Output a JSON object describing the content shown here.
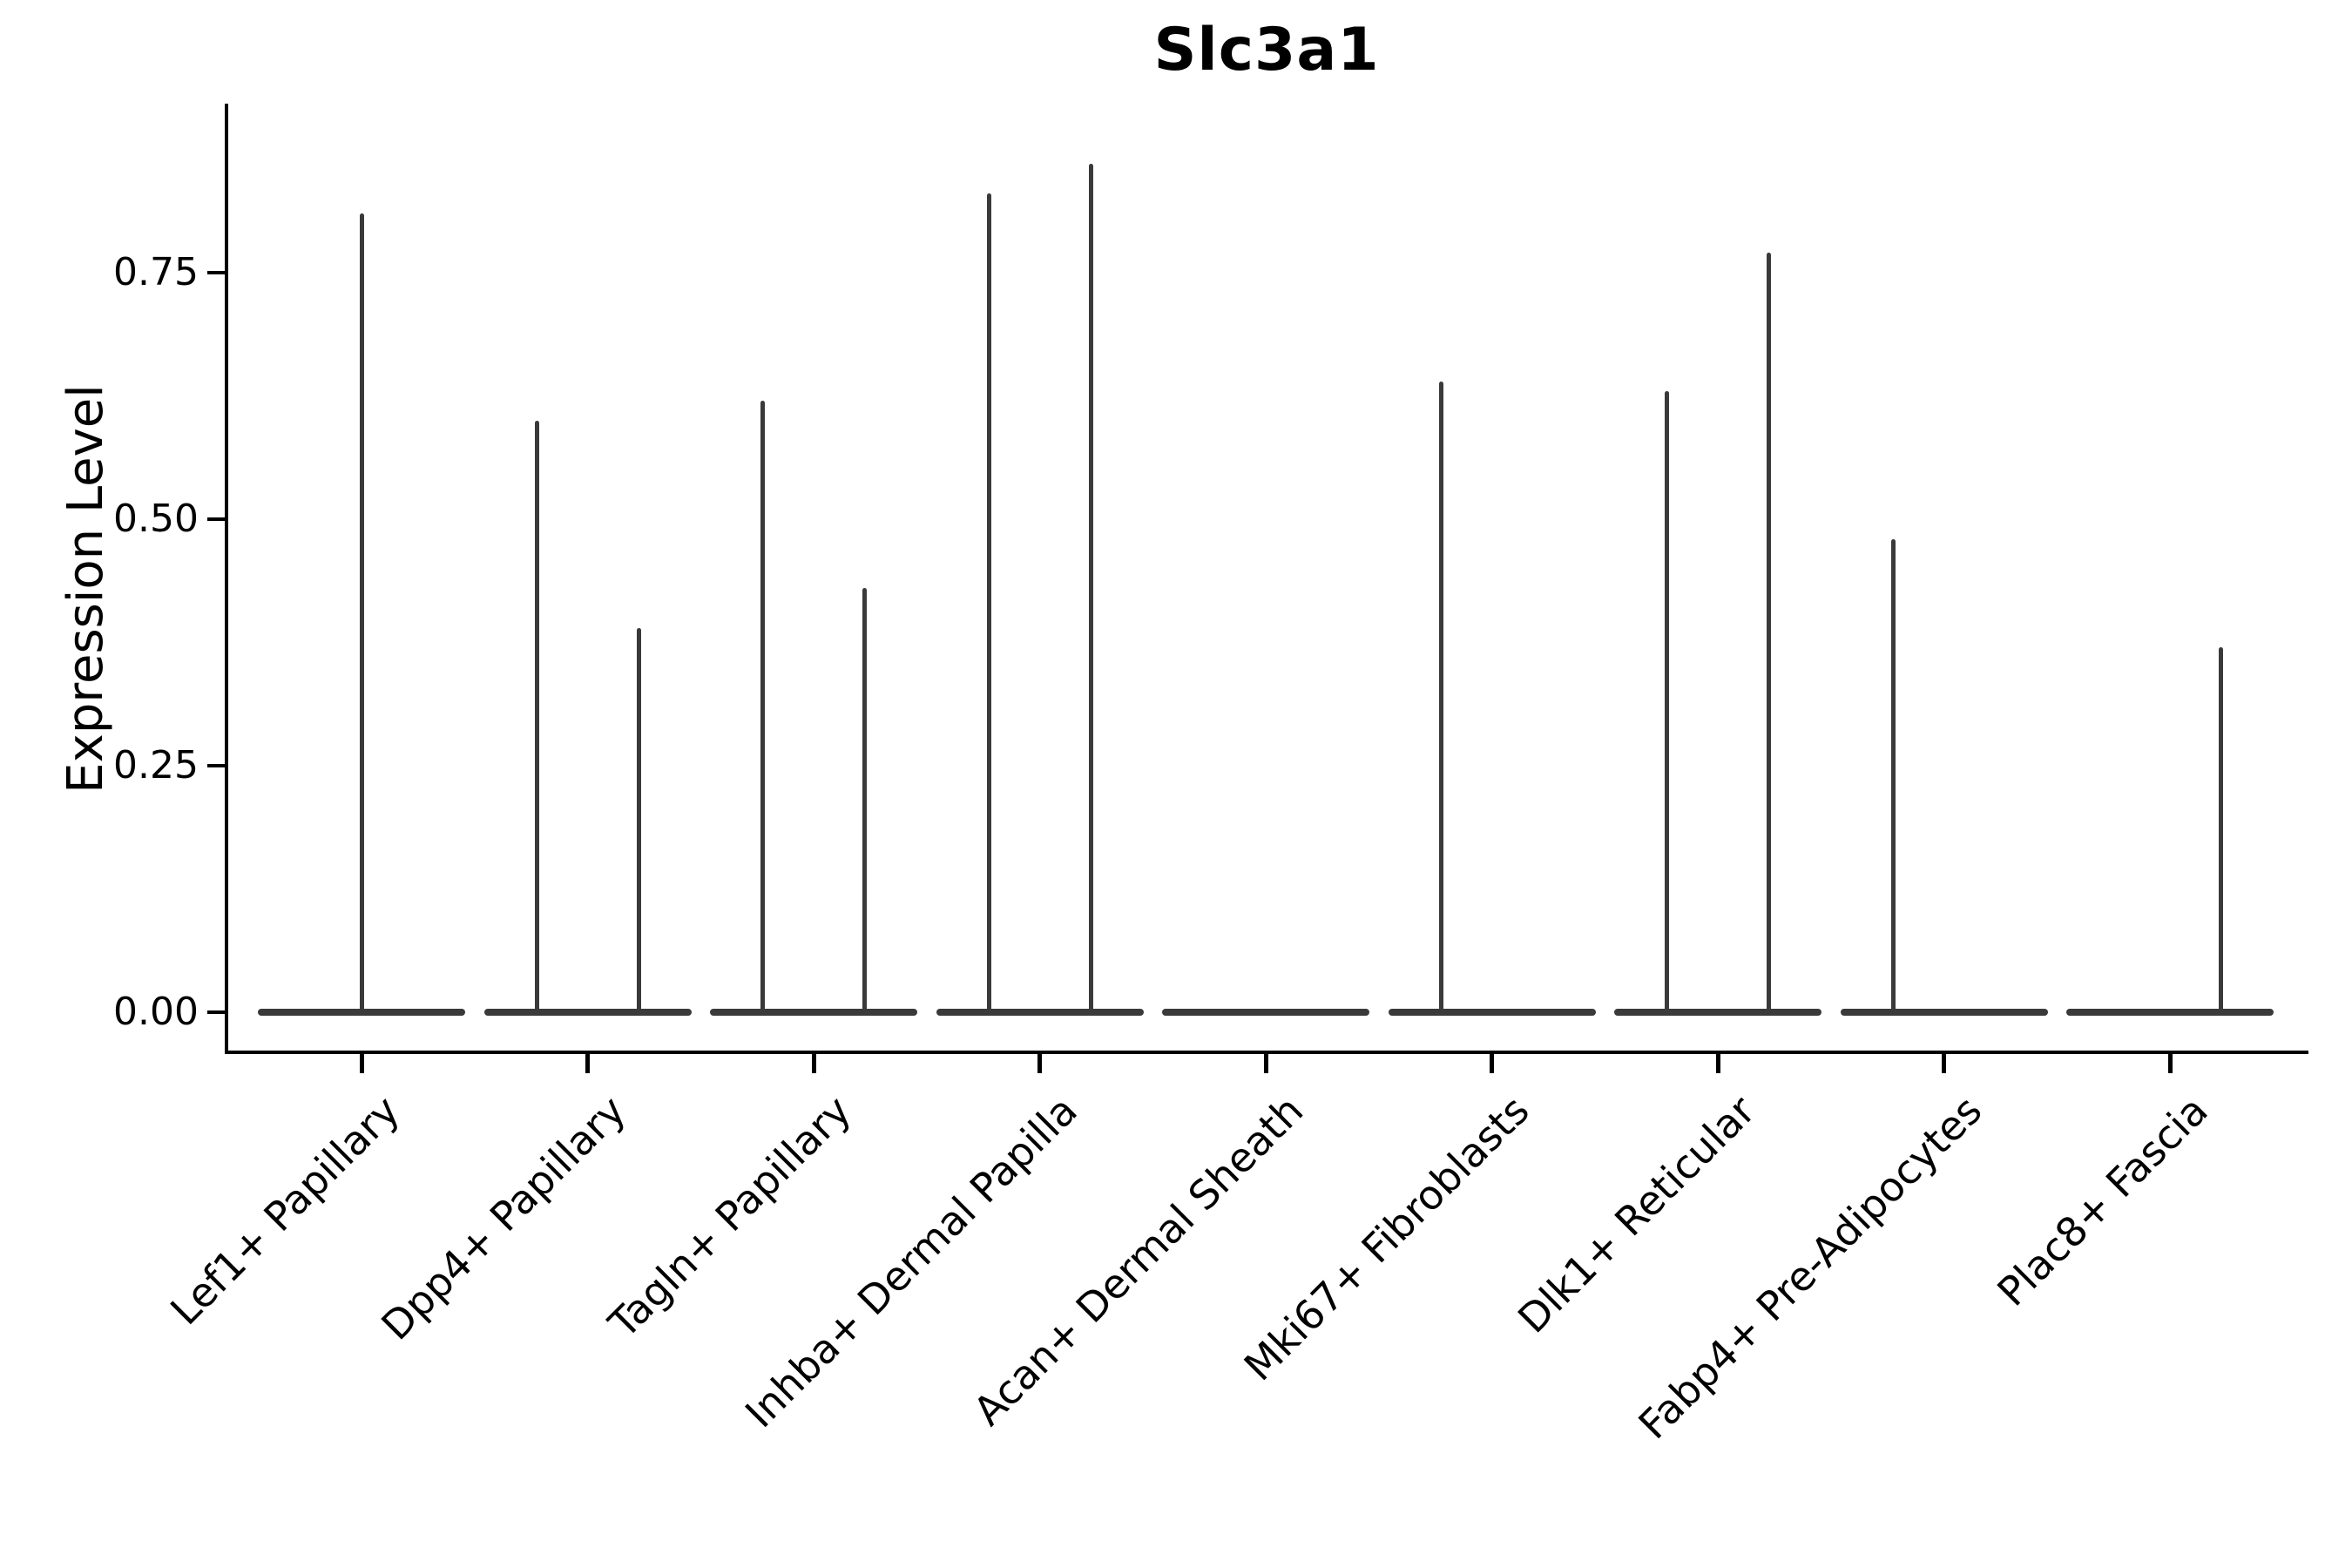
{
  "chart_data": {
    "type": "violin",
    "title": "Slc3a1",
    "xlabel": "",
    "ylabel": "Expression Level",
    "ylim": [
      0,
      0.92
    ],
    "grid": false,
    "legend": "none",
    "yticks": [
      {
        "value": 0.0,
        "label": "0.00"
      },
      {
        "value": 0.25,
        "label": "0.25"
      },
      {
        "value": 0.5,
        "label": "0.50"
      },
      {
        "value": 0.75,
        "label": "0.75"
      }
    ],
    "categories": [
      "Lef1+ Papillary",
      "Dpp4+ Papillary",
      "Tagln+ Papillary",
      "Inhba+ Dermal Papilla",
      "Acan+ Dermal Sheath",
      "Mki67+ Fibroblasts",
      "Dlk1+ Reticular",
      "Fabp4+ Pre-Adipocytes",
      "Plac8+ Fascia"
    ],
    "violins": [
      {
        "category": "Lef1+ Papillary",
        "baseline_value": 0,
        "spikes": [
          {
            "slot": "center",
            "max_expression": 0.81
          }
        ]
      },
      {
        "category": "Dpp4+ Papillary",
        "baseline_value": 0,
        "spikes": [
          {
            "slot": "left",
            "max_expression": 0.6
          },
          {
            "slot": "right",
            "max_expression": 0.39
          }
        ]
      },
      {
        "category": "Tagln+ Papillary",
        "baseline_value": 0,
        "spikes": [
          {
            "slot": "left",
            "max_expression": 0.62
          },
          {
            "slot": "right",
            "max_expression": 0.43
          }
        ]
      },
      {
        "category": "Inhba+ Dermal Papilla",
        "baseline_value": 0,
        "spikes": [
          {
            "slot": "left",
            "max_expression": 0.83
          },
          {
            "slot": "right",
            "max_expression": 0.86
          }
        ]
      },
      {
        "category": "Acan+ Dermal Sheath",
        "baseline_value": 0,
        "spikes": []
      },
      {
        "category": "Mki67+ Fibroblasts",
        "baseline_value": 0,
        "spikes": [
          {
            "slot": "left",
            "max_expression": 0.64
          }
        ]
      },
      {
        "category": "Dlk1+ Reticular",
        "baseline_value": 0,
        "spikes": [
          {
            "slot": "left",
            "max_expression": 0.63
          },
          {
            "slot": "right",
            "max_expression": 0.77
          }
        ]
      },
      {
        "category": "Fabp4+ Pre-Adipocytes",
        "baseline_value": 0,
        "spikes": [
          {
            "slot": "left",
            "max_expression": 0.48
          }
        ]
      },
      {
        "category": "Plac8+ Fascia",
        "baseline_value": 0,
        "spikes": [
          {
            "slot": "right",
            "max_expression": 0.37
          }
        ]
      }
    ],
    "colors": {
      "violin_line": "#3a3a3a",
      "axis": "#000000",
      "text": "#000000",
      "background": "#ffffff"
    }
  }
}
